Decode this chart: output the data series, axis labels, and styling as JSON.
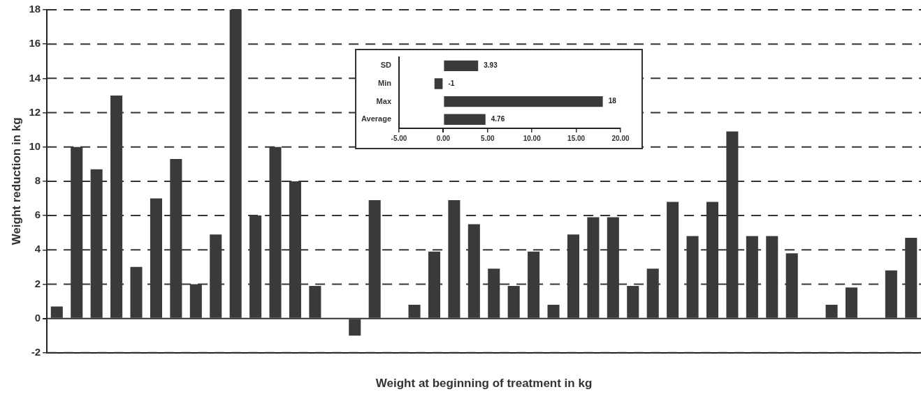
{
  "chart_data": [
    {
      "type": "bar",
      "xlabel": "Weight at beginning of treatment in kg",
      "ylabel": "Weight reduction in kg",
      "categories": [
        null,
        null,
        null,
        null,
        null,
        null,
        null,
        null,
        null,
        null,
        null,
        null,
        null,
        null,
        null,
        null,
        null,
        null,
        null,
        null,
        null,
        null,
        null,
        null,
        null,
        null,
        null,
        null,
        null,
        null,
        null,
        null,
        null,
        null,
        null,
        null,
        null,
        null,
        null,
        null,
        null,
        null,
        null,
        null
      ],
      "values": [
        0.7,
        10,
        8.7,
        13,
        3,
        7,
        9.3,
        2,
        4.9,
        18,
        6,
        10,
        8,
        1.9,
        0,
        -1,
        6.9,
        0,
        0.8,
        3.9,
        6.9,
        5.5,
        2.9,
        1.9,
        3.9,
        0.8,
        4.9,
        5.9,
        5.9,
        1.9,
        2.9,
        6.8,
        4.8,
        6.8,
        10.9,
        4.8,
        4.8,
        3.8,
        0,
        0.8,
        1.8,
        0,
        2.8,
        4.7
      ],
      "color": "#3a3a3a",
      "ylim": [
        -2,
        18
      ],
      "yticks": [
        -2,
        0,
        2,
        4,
        6,
        8,
        10,
        12,
        14,
        16,
        18
      ],
      "grid": "y",
      "legend": false
    },
    {
      "type": "bar",
      "orientation": "horizontal",
      "categories": [
        "SD",
        "Min",
        "Max",
        "Average"
      ],
      "values": [
        3.93,
        -1,
        18,
        4.76
      ],
      "color": "#3a3a3a",
      "data_labels": true,
      "xlim": [
        -5,
        20
      ],
      "xticks": [
        {
          "value": -5,
          "label": "-5.00"
        },
        {
          "value": 0,
          "label": "0.00"
        },
        {
          "value": 5,
          "label": "5.00"
        },
        {
          "value": 10,
          "label": "10.00"
        },
        {
          "value": 15,
          "label": "15.00"
        },
        {
          "value": 20,
          "label": "20.00"
        }
      ],
      "legend": false
    }
  ]
}
